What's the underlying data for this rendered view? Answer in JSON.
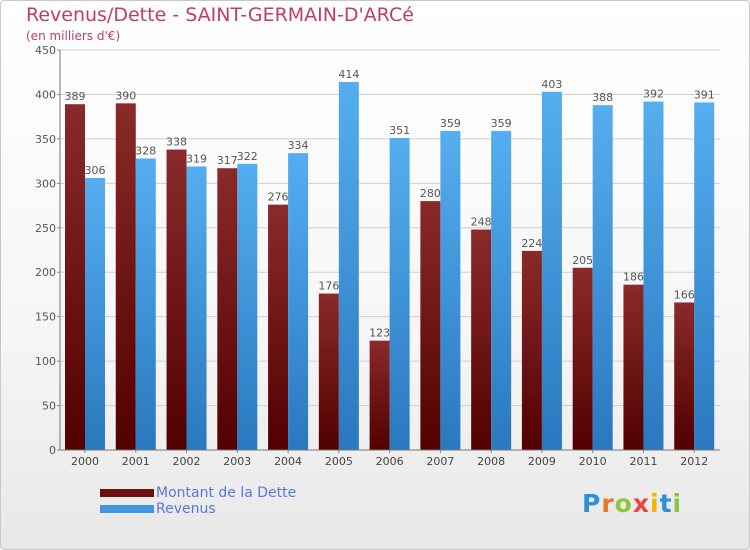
{
  "title": "Revenus/Dette - SAINT-GERMAIN-D'ARCé",
  "subtitle": "(en milliers d'€)",
  "colors": {
    "title": "#c23b6b",
    "dette": "#7a1e1e",
    "revenus": "#3f96dc"
  },
  "chart_data": {
    "type": "bar",
    "categories": [
      "2000",
      "2001",
      "2002",
      "2003",
      "2004",
      "2005",
      "2006",
      "2007",
      "2008",
      "2009",
      "2010",
      "2011",
      "2012"
    ],
    "series": [
      {
        "name": "Montant de la Dette",
        "values": [
          389,
          390,
          338,
          317,
          276,
          176,
          123,
          280,
          248,
          224,
          205,
          186,
          166
        ]
      },
      {
        "name": "Revenus",
        "values": [
          306,
          328,
          319,
          322,
          334,
          414,
          351,
          359,
          359,
          403,
          388,
          392,
          391
        ]
      }
    ],
    "ylim": [
      0,
      450
    ],
    "yticks": [
      0,
      50,
      100,
      150,
      200,
      250,
      300,
      350,
      400,
      450
    ],
    "grid": true,
    "legend_placement": "bottom-left"
  },
  "legend": {
    "items": [
      {
        "label": "Montant de la Dette"
      },
      {
        "label": "Revenus"
      }
    ]
  },
  "logo": {
    "letters": [
      "P",
      "r",
      "o",
      "x",
      "i",
      "t",
      "i"
    ],
    "colors": [
      "#2f8fd8",
      "#e8762a",
      "#8cc63f",
      "#e8463c",
      "#f2b705",
      "#2f8fd8",
      "#8cc63f"
    ]
  }
}
